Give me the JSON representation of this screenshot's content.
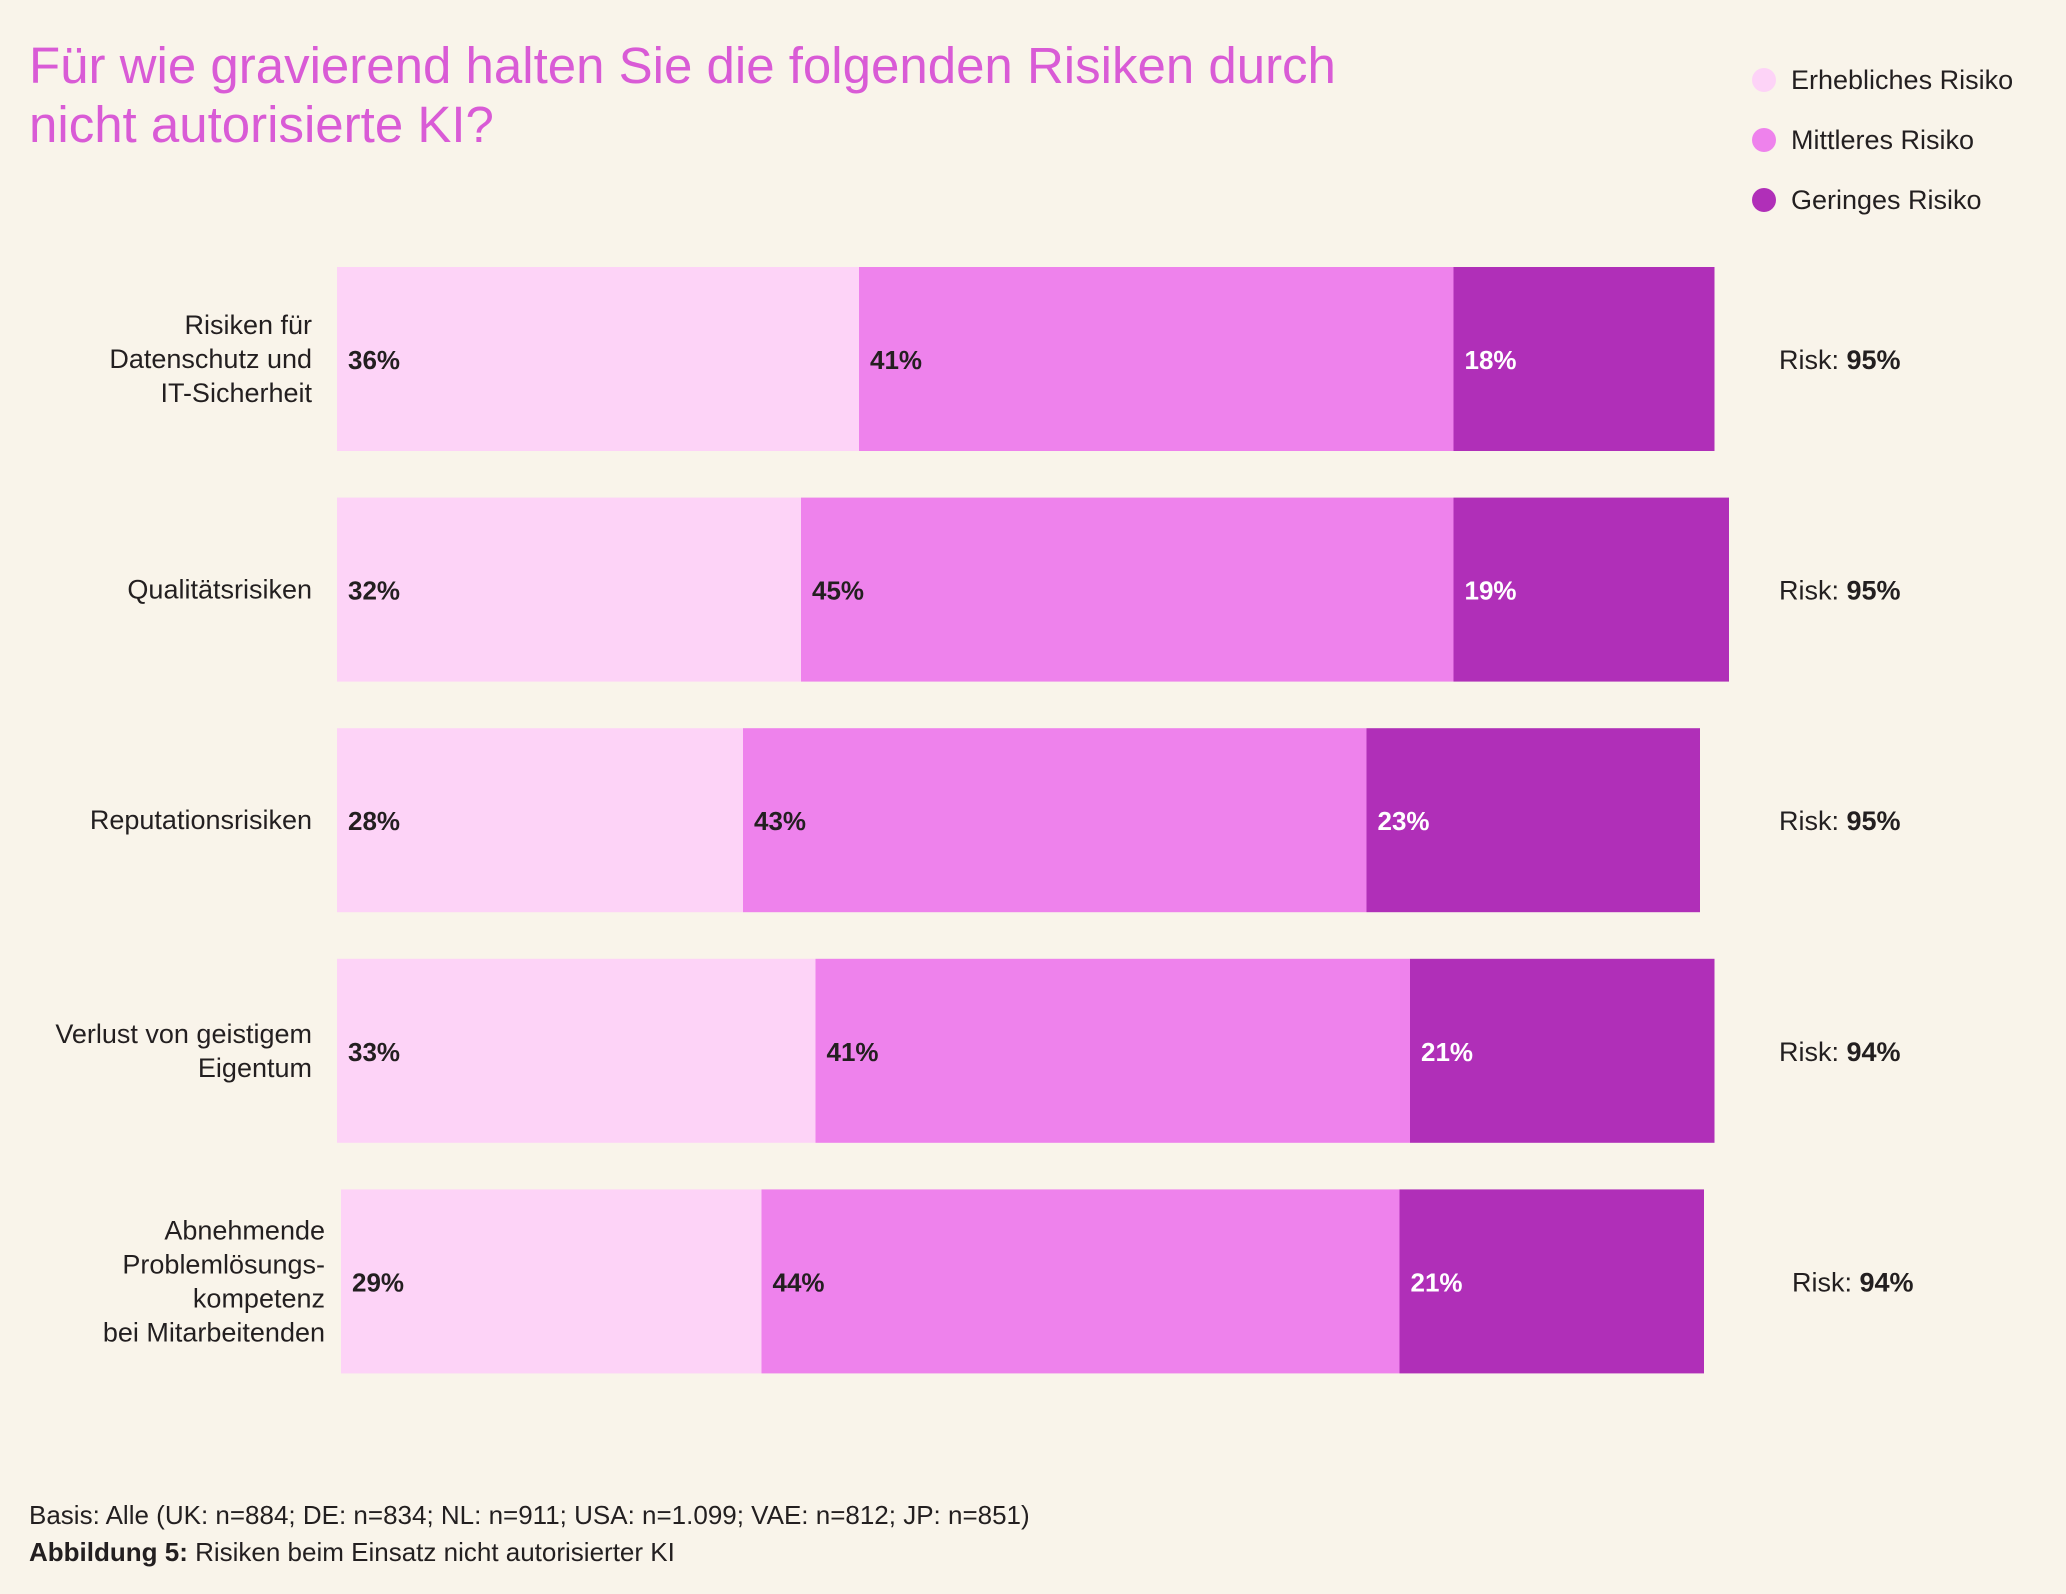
{
  "chart_data": {
    "type": "bar",
    "orientation": "horizontal",
    "stacked": true,
    "title": "Für wie gravierend halten Sie die folgenden Risiken durch nicht autorisierte KI?",
    "categories": [
      [
        "Risiken für",
        "Datenschutz und",
        "IT-Sicherheit"
      ],
      [
        "Qualitätsrisiken"
      ],
      [
        "Reputationsrisiken"
      ],
      [
        "Verlust von geistigem",
        "Eigentum"
      ],
      [
        "Abnehmende",
        "Problemlösungs-",
        "kompetenz",
        "bei Mitarbeitenden"
      ]
    ],
    "series": [
      {
        "name": "Erhebliches Risiko",
        "color": "#fdd3f7",
        "values": [
          36,
          32,
          28,
          33,
          29
        ]
      },
      {
        "name": "Mittleres Risiko",
        "color": "#ee82ec",
        "values": [
          41,
          45,
          43,
          41,
          44
        ]
      },
      {
        "name": "Geringes Risiko",
        "color": "#b02fb8",
        "values": [
          18,
          19,
          23,
          21,
          21
        ]
      }
    ],
    "value_suffix": "%",
    "totals_prefix": "Risk: ",
    "totals": [
      "95%",
      "95%",
      "95%",
      "94%",
      "94%"
    ],
    "legend_position": "top-right",
    "grid": false,
    "xlim": [
      0,
      100
    ]
  },
  "footer": {
    "basis": "Basis: Alle (UK: n=884; DE: n=834; NL: n=911; USA: n=1.099; VAE: n=812; JP: n=851)",
    "figure_label": "Abbildung 5:",
    "figure_caption": " Risiken beim Einsatz nicht autorisierter KI"
  }
}
